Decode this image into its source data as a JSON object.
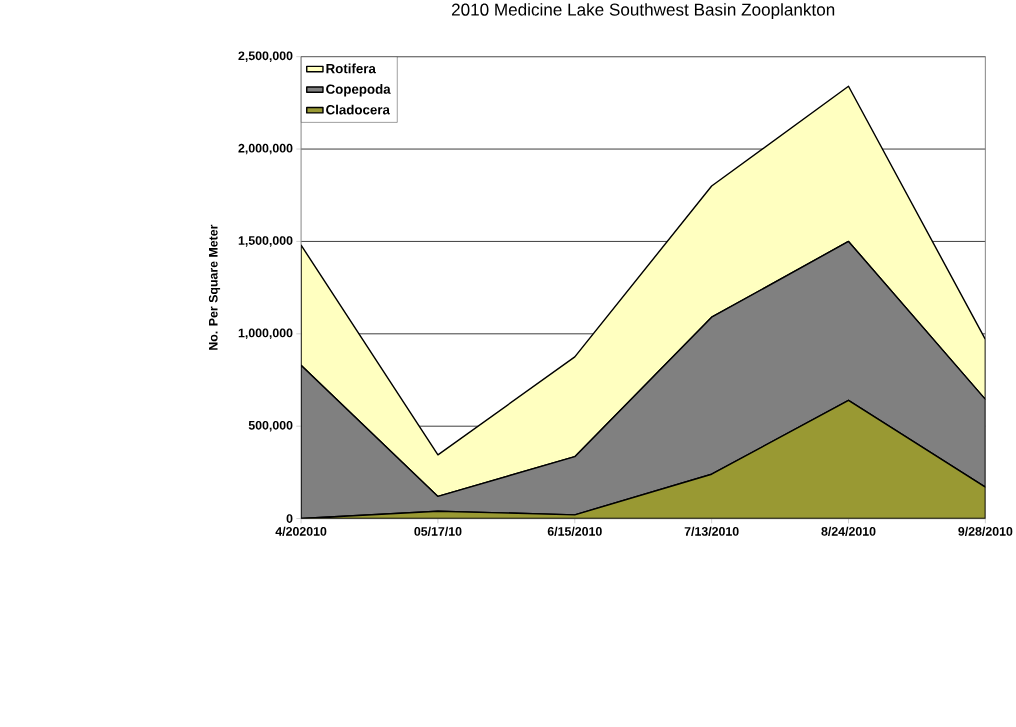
{
  "chart_data": {
    "type": "area",
    "title": "2010 Medicine Lake Southwest Basin Zooplankton",
    "ylabel": "No. Per Square Meter",
    "categories": [
      "4/202010",
      "05/17/10",
      "6/15/2010",
      "7/13/2010",
      "8/24/2010",
      "9/28/2010"
    ],
    "stacked": true,
    "series": [
      {
        "name": "Cladocera",
        "color": "#999933",
        "values": [
          0,
          40000,
          20000,
          240000,
          640000,
          170000
        ]
      },
      {
        "name": "Copepoda",
        "color": "#808080",
        "values": [
          830000,
          80000,
          315000,
          850000,
          860000,
          475000
        ]
      },
      {
        "name": "Rotifera",
        "color": "#ffffc0",
        "values": [
          650000,
          225000,
          540000,
          710000,
          840000,
          325000
        ]
      }
    ],
    "ylim": [
      0,
      2500000
    ],
    "yticks": [
      {
        "value": 0,
        "label": "0"
      },
      {
        "value": 500000,
        "label": "500,000"
      },
      {
        "value": 1000000,
        "label": "1,000,000"
      },
      {
        "value": 1500000,
        "label": "1,500,000"
      },
      {
        "value": 2000000,
        "label": "2,000,000"
      },
      {
        "value": 2500000,
        "label": "2,500,000"
      }
    ],
    "grid": "y",
    "legend": "top left"
  }
}
